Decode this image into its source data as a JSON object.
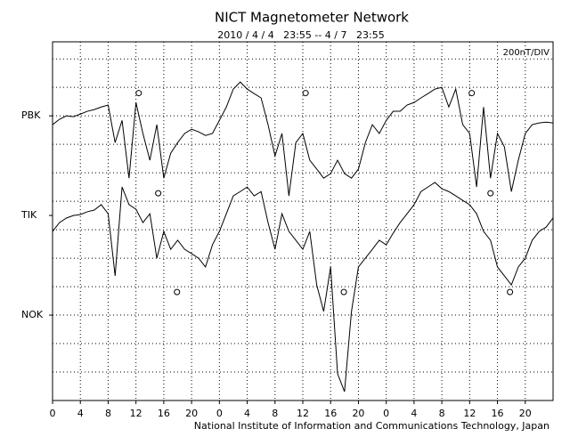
{
  "chart_data": {
    "type": "line",
    "title": "NICT Magnetometer Network",
    "subtitle": "2010 / 4 / 4   23:55 -- 4 / 7   23:55",
    "scale_note": "200nT/DIV",
    "footer": "National Institute of Information and Communications Technology, Japan",
    "x": [
      0,
      1,
      2,
      3,
      4,
      5,
      6,
      7,
      8,
      9,
      10,
      11,
      12,
      13,
      14,
      15,
      16,
      17,
      18,
      19,
      20,
      21,
      22,
      23,
      24,
      25,
      26,
      27,
      28,
      29,
      30,
      31,
      32,
      33,
      34,
      35,
      36,
      37,
      38,
      39,
      40,
      41,
      42,
      43,
      44,
      45,
      46,
      47,
      48,
      49,
      50,
      51,
      52,
      53,
      54,
      55,
      56,
      57,
      58,
      59,
      60,
      61,
      62,
      63,
      64,
      65,
      66,
      67,
      68,
      69,
      70,
      71,
      72
    ],
    "series": [
      {
        "name": "PBK",
        "color": "#000000",
        "values": [
          9.69,
          9.88,
          10,
          9.97,
          10.06,
          10.16,
          10.22,
          10.31,
          10.38,
          9.06,
          9.84,
          7.81,
          10.47,
          9.38,
          8.44,
          9.69,
          7.81,
          8.69,
          9.06,
          9.38,
          9.53,
          9.44,
          9.31,
          9.38,
          9.84,
          10.31,
          10.94,
          11.19,
          10.94,
          10.78,
          10.63,
          9.69,
          8.59,
          9.38,
          7.19,
          9.06,
          9.38,
          8.44,
          8.13,
          7.81,
          7.97,
          8.44,
          7.97,
          7.81,
          8.13,
          9.06,
          9.69,
          9.38,
          9.84,
          10.16,
          10.16,
          10.38,
          10.47,
          10.63,
          10.78,
          10.94,
          11,
          10.31,
          10.94,
          9.69,
          9.38,
          7.5,
          10.31,
          7.81,
          9.38,
          8.91,
          7.34,
          8.44,
          9.38,
          9.69,
          9.75,
          9.78,
          9.75
        ]
      },
      {
        "name": "TIK",
        "color": "#000000",
        "values": [
          5.94,
          6.25,
          6.41,
          6.5,
          6.53,
          6.63,
          6.69,
          6.88,
          6.56,
          4.38,
          7.5,
          6.88,
          6.72,
          6.25,
          6.56,
          5,
          5.94,
          5.31,
          5.63,
          5.31,
          5.16,
          5,
          4.69,
          5.47,
          5.94,
          6.56,
          7.19,
          7.34,
          7.5,
          7.19,
          7.34,
          6.25,
          5.31,
          6.56,
          5.94,
          5.63,
          5.31,
          5.94,
          4.06,
          3.13,
          4.69,
          0.94,
          0.31,
          3.13,
          4.69,
          5,
          5.31,
          5.63,
          5.47,
          5.88,
          6.25,
          6.56,
          6.88,
          7.34,
          7.5,
          7.66,
          7.44,
          7.34,
          7.19,
          7.03,
          6.88,
          6.56,
          5.94,
          5.63,
          4.69,
          4.38,
          4.06,
          4.69,
          5,
          5.63,
          5.94,
          6.09,
          6.41
        ]
      }
    ],
    "markers": {
      "x": [
        12.4,
        36.4,
        60.3,
        15.2,
        63.0,
        17.9,
        41.9,
        65.8
      ],
      "y": [
        10.8,
        10.8,
        10.8,
        7.28,
        7.28,
        3.81,
        3.81,
        3.81
      ]
    },
    "xlim": [
      0,
      72
    ],
    "xticks": [
      0,
      4,
      8,
      12,
      16,
      20,
      {
        "value": 24,
        "label": "0"
      },
      {
        "value": 28,
        "label": "4"
      },
      {
        "value": 32,
        "label": "8"
      },
      {
        "value": 36,
        "label": "12"
      },
      {
        "value": 40,
        "label": "16"
      },
      {
        "value": 44,
        "label": "20"
      },
      {
        "value": 48,
        "label": "0"
      },
      {
        "value": 52,
        "label": "4"
      },
      {
        "value": 56,
        "label": "8"
      },
      {
        "value": 60,
        "label": "12"
      },
      {
        "value": 64,
        "label": "16"
      },
      {
        "value": 68,
        "label": "20"
      }
    ],
    "ylim": [
      0,
      12.6
    ],
    "yticks": [
      {
        "value": 10,
        "label": "PBK"
      },
      {
        "value": 6.5,
        "label": "TIK"
      },
      {
        "value": 3,
        "label": "NOK"
      }
    ],
    "ygrid": [
      1,
      2,
      3,
      4,
      5,
      6,
      7,
      8,
      9,
      10,
      11,
      12
    ],
    "grid": true
  }
}
